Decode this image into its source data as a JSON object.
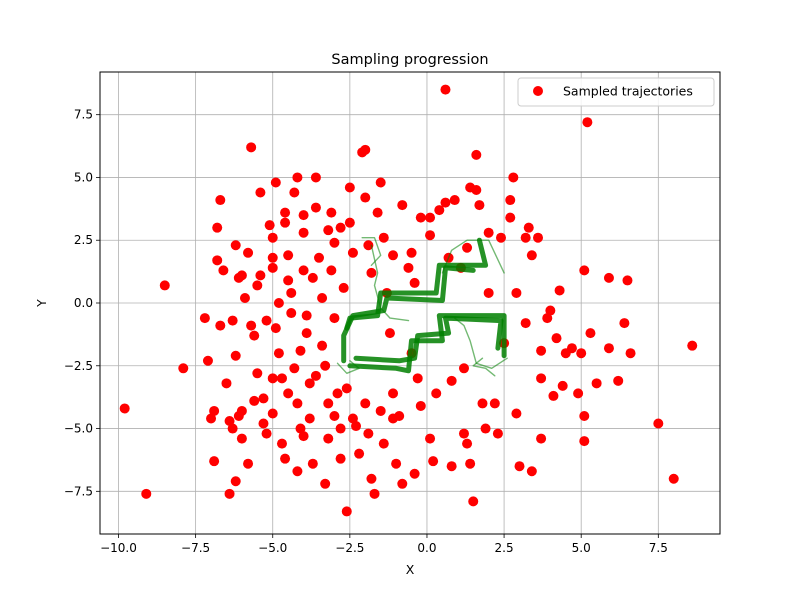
{
  "chart_data": {
    "type": "scatter",
    "title": "Sampling progression",
    "xlabel": "X",
    "ylabel": "Y",
    "xlim": [
      -10.6,
      9.5
    ],
    "ylim": [
      -9.2,
      9.2
    ],
    "xticks": [
      -10.0,
      -7.5,
      -5.0,
      -2.5,
      0.0,
      2.5,
      5.0,
      7.5
    ],
    "yticks": [
      -7.5,
      -5.0,
      -2.5,
      0.0,
      2.5,
      5.0,
      7.5
    ],
    "xtick_labels": [
      "−10.0",
      "−7.5",
      "−5.0",
      "−2.5",
      "0.0",
      "2.5",
      "5.0",
      "7.5"
    ],
    "ytick_labels": [
      "−7.5",
      "−5.0",
      "−2.5",
      "0.0",
      "2.5",
      "5.0",
      "7.5"
    ],
    "grid": true,
    "legend": {
      "position": "top-right",
      "entries": [
        "Sampled trajectories"
      ]
    },
    "colors": {
      "points": "#ff0000",
      "path": "#007f00",
      "grid": "#b0b0b0"
    },
    "series": [
      {
        "name": "Sampled trajectories",
        "kind": "scatter",
        "points": [
          [
            -9.8,
            -4.2
          ],
          [
            -9.1,
            -7.6
          ],
          [
            -8.5,
            0.7
          ],
          [
            -7.9,
            -2.6
          ],
          [
            -7.2,
            -0.6
          ],
          [
            -7.1,
            -2.3
          ],
          [
            -7.0,
            -4.6
          ],
          [
            -6.9,
            -4.3
          ],
          [
            -6.9,
            -6.3
          ],
          [
            -6.8,
            3.0
          ],
          [
            -6.7,
            4.1
          ],
          [
            -6.8,
            1.7
          ],
          [
            -6.6,
            1.3
          ],
          [
            -6.7,
            -0.9
          ],
          [
            -6.5,
            -3.2
          ],
          [
            -6.4,
            -4.7
          ],
          [
            -6.3,
            -5.0
          ],
          [
            -6.2,
            -7.1
          ],
          [
            -6.4,
            -7.6
          ],
          [
            -6.2,
            2.3
          ],
          [
            -6.1,
            1.0
          ],
          [
            -6.2,
            -2.1
          ],
          [
            -6.0,
            -4.3
          ],
          [
            -6.0,
            -5.4
          ],
          [
            -5.8,
            -6.4
          ],
          [
            -5.9,
            0.2
          ],
          [
            -5.6,
            -1.3
          ],
          [
            -5.5,
            -2.8
          ],
          [
            -5.7,
            6.2
          ],
          [
            -5.4,
            4.4
          ],
          [
            -5.4,
            1.1
          ],
          [
            -5.5,
            0.7
          ],
          [
            -5.3,
            -3.8
          ],
          [
            -5.2,
            -5.2
          ],
          [
            -5.0,
            -4.4
          ],
          [
            -5.0,
            2.6
          ],
          [
            -5.0,
            1.4
          ],
          [
            -4.8,
            0.0
          ],
          [
            -4.9,
            -1.0
          ],
          [
            -4.8,
            -2.0
          ],
          [
            -4.7,
            -3.0
          ],
          [
            -4.7,
            -5.6
          ],
          [
            -4.6,
            -6.2
          ],
          [
            -4.9,
            4.8
          ],
          [
            -4.6,
            3.2
          ],
          [
            -4.5,
            1.9
          ],
          [
            -4.4,
            -0.4
          ],
          [
            -4.3,
            -2.6
          ],
          [
            -4.2,
            -4.0
          ],
          [
            -4.1,
            -5.0
          ],
          [
            -4.2,
            -6.7
          ],
          [
            -4.2,
            5.0
          ],
          [
            -4.3,
            4.4
          ],
          [
            -4.0,
            2.8
          ],
          [
            -4.0,
            1.3
          ],
          [
            -3.9,
            -1.2
          ],
          [
            -3.8,
            -3.2
          ],
          [
            -3.8,
            -4.6
          ],
          [
            -3.7,
            -6.4
          ],
          [
            -3.6,
            5.0
          ],
          [
            -3.6,
            3.8
          ],
          [
            -3.5,
            1.8
          ],
          [
            -3.4,
            0.2
          ],
          [
            -3.4,
            -1.7
          ],
          [
            -3.3,
            -2.5
          ],
          [
            -3.2,
            -4.0
          ],
          [
            -3.2,
            -5.4
          ],
          [
            -3.3,
            -7.2
          ],
          [
            -3.1,
            3.6
          ],
          [
            -3.0,
            2.4
          ],
          [
            -3.0,
            -0.6
          ],
          [
            -2.9,
            -3.6
          ],
          [
            -2.8,
            -5.0
          ],
          [
            -2.8,
            -6.2
          ],
          [
            -2.6,
            -8.3
          ],
          [
            -2.5,
            4.6
          ],
          [
            -2.5,
            3.2
          ],
          [
            -2.4,
            2.0
          ],
          [
            -2.4,
            -4.6
          ],
          [
            -2.2,
            -6.0
          ],
          [
            -2.1,
            6.0
          ],
          [
            -2.0,
            6.1
          ],
          [
            -2.0,
            4.2
          ],
          [
            -2.0,
            -4.0
          ],
          [
            -1.9,
            -5.2
          ],
          [
            -1.8,
            -7.0
          ],
          [
            -1.7,
            -7.6
          ],
          [
            -1.5,
            4.8
          ],
          [
            -1.6,
            3.6
          ],
          [
            -1.4,
            2.6
          ],
          [
            -1.3,
            0.4
          ],
          [
            -1.2,
            -1.2
          ],
          [
            -1.1,
            -3.6
          ],
          [
            -1.1,
            -4.6
          ],
          [
            -1.0,
            -6.4
          ],
          [
            -0.8,
            3.9
          ],
          [
            -0.8,
            -7.2
          ],
          [
            -0.6,
            1.4
          ],
          [
            -0.5,
            -2.0
          ],
          [
            -0.4,
            -6.8
          ],
          [
            -0.2,
            3.4
          ],
          [
            -0.2,
            -4.1
          ],
          [
            0.1,
            3.4
          ],
          [
            0.1,
            -5.4
          ],
          [
            0.2,
            -6.3
          ],
          [
            0.4,
            3.7
          ],
          [
            0.6,
            8.5
          ],
          [
            0.6,
            4.0
          ],
          [
            0.8,
            -6.5
          ],
          [
            0.9,
            4.1
          ],
          [
            1.2,
            -5.2
          ],
          [
            1.3,
            -5.6
          ],
          [
            1.4,
            -6.4
          ],
          [
            1.5,
            -7.9
          ],
          [
            1.4,
            4.6
          ],
          [
            1.6,
            4.5
          ],
          [
            1.6,
            5.9
          ],
          [
            1.7,
            3.9
          ],
          [
            1.8,
            -4.0
          ],
          [
            1.9,
            -5.0
          ],
          [
            2.0,
            2.8
          ],
          [
            2.2,
            -4.0
          ],
          [
            2.3,
            -5.2
          ],
          [
            2.5,
            -1.6
          ],
          [
            2.7,
            4.1
          ],
          [
            2.8,
            5.0
          ],
          [
            2.7,
            3.4
          ],
          [
            2.9,
            -4.4
          ],
          [
            3.0,
            -6.5
          ],
          [
            3.2,
            2.6
          ],
          [
            3.3,
            3.0
          ],
          [
            3.4,
            -6.7
          ],
          [
            3.6,
            2.6
          ],
          [
            3.7,
            -3.0
          ],
          [
            3.7,
            -5.4
          ],
          [
            3.9,
            -0.6
          ],
          [
            4.1,
            -3.7
          ],
          [
            4.2,
            -1.4
          ],
          [
            4.4,
            -3.3
          ],
          [
            4.5,
            -2.0
          ],
          [
            4.7,
            -1.8
          ],
          [
            4.9,
            -3.6
          ],
          [
            5.0,
            -2.0
          ],
          [
            5.1,
            -4.5
          ],
          [
            5.1,
            -5.5
          ],
          [
            5.2,
            7.2
          ],
          [
            5.3,
            -1.2
          ],
          [
            5.5,
            -3.2
          ],
          [
            5.9,
            -1.8
          ],
          [
            6.2,
            -3.1
          ],
          [
            6.4,
            -0.8
          ],
          [
            6.5,
            0.9
          ],
          [
            6.6,
            -2.0
          ],
          [
            7.5,
            -4.8
          ],
          [
            8.0,
            -7.0
          ],
          [
            8.6,
            -1.7
          ],
          [
            5.1,
            1.3
          ],
          [
            5.9,
            1.0
          ],
          [
            4.3,
            0.5
          ],
          [
            3.2,
            -0.8
          ],
          [
            3.7,
            -1.9
          ],
          [
            4.0,
            -0.3
          ],
          [
            -3.9,
            -0.5
          ],
          [
            -4.4,
            0.4
          ],
          [
            -5.2,
            -0.7
          ],
          [
            -5.7,
            -0.9
          ],
          [
            -6.3,
            -0.7
          ],
          [
            -4.1,
            -1.9
          ],
          [
            -3.6,
            -2.9
          ],
          [
            -4.5,
            -3.6
          ],
          [
            -5.0,
            -3.0
          ],
          [
            -5.6,
            -3.9
          ],
          [
            -6.1,
            -4.5
          ],
          [
            -5.3,
            -4.8
          ],
          [
            -4.0,
            -5.3
          ],
          [
            -3.0,
            -4.5
          ],
          [
            -2.6,
            -3.4
          ],
          [
            -2.3,
            -4.9
          ],
          [
            -1.5,
            -4.3
          ],
          [
            -1.4,
            -5.6
          ],
          [
            -0.9,
            -4.5
          ],
          [
            -0.3,
            -3.0
          ],
          [
            0.3,
            -3.6
          ],
          [
            0.8,
            -3.1
          ],
          [
            1.2,
            -2.6
          ],
          [
            -4.6,
            3.6
          ],
          [
            -4.0,
            3.5
          ],
          [
            -3.2,
            2.9
          ],
          [
            -2.8,
            3.0
          ],
          [
            -5.1,
            3.1
          ],
          [
            -5.8,
            2.0
          ],
          [
            -6.0,
            1.1
          ],
          [
            -5.0,
            1.8
          ],
          [
            -4.5,
            0.9
          ],
          [
            -3.7,
            1.0
          ],
          [
            -3.1,
            1.3
          ],
          [
            -2.7,
            0.6
          ],
          [
            -1.8,
            1.2
          ],
          [
            -1.1,
            1.9
          ],
          [
            -0.4,
            0.8
          ],
          [
            0.7,
            1.8
          ],
          [
            1.1,
            1.4
          ],
          [
            2.0,
            0.4
          ],
          [
            2.9,
            0.4
          ],
          [
            3.4,
            1.9
          ],
          [
            2.4,
            2.6
          ],
          [
            1.3,
            2.2
          ],
          [
            0.1,
            2.7
          ],
          [
            -0.5,
            2.0
          ],
          [
            -1.9,
            2.3
          ]
        ]
      },
      {
        "name": "",
        "kind": "line",
        "paths": [
          [
            [
              -2.5,
              -2.5
            ],
            [
              -1.0,
              -2.6
            ],
            [
              -0.6,
              -2.7
            ],
            [
              -0.5,
              -1.5
            ],
            [
              0.5,
              -1.5
            ],
            [
              0.4,
              -0.5
            ],
            [
              2.5,
              -0.5
            ],
            [
              2.5,
              -2.1
            ]
          ],
          [
            [
              -2.6,
              -1.0
            ],
            [
              -2.5,
              -0.6
            ],
            [
              -1.6,
              -0.5
            ],
            [
              -1.5,
              0.4
            ],
            [
              0.3,
              0.4
            ],
            [
              0.4,
              1.5
            ],
            [
              1.9,
              1.5
            ],
            [
              1.7,
              2.5
            ]
          ],
          [
            [
              -2.3,
              -2.2
            ],
            [
              -0.9,
              -2.3
            ],
            [
              -0.4,
              -2.2
            ],
            [
              -0.3,
              -1.3
            ],
            [
              0.7,
              -1.2
            ],
            [
              0.6,
              -0.6
            ],
            [
              2.4,
              -0.7
            ],
            [
              2.3,
              -1.8
            ]
          ],
          [
            [
              -2.7,
              -2.3
            ],
            [
              -2.7,
              -1.3
            ],
            [
              -2.4,
              -0.5
            ],
            [
              -1.4,
              -0.3
            ],
            [
              -1.3,
              0.2
            ],
            [
              0.5,
              0.1
            ],
            [
              0.6,
              1.4
            ],
            [
              1.5,
              1.3
            ]
          ],
          [
            [
              -1.8,
              2.3
            ],
            [
              -1.6,
              1.2
            ],
            [
              -1.7,
              0.7
            ],
            [
              -1.5,
              -0.2
            ],
            [
              -1.2,
              -0.6
            ],
            [
              -0.6,
              -0.7
            ]
          ],
          [
            [
              0.5,
              1.2
            ],
            [
              0.8,
              2.1
            ],
            [
              1.3,
              2.5
            ],
            [
              2.0,
              2.5
            ],
            [
              2.5,
              1.2
            ]
          ],
          [
            [
              0.9,
              -0.6
            ],
            [
              1.2,
              -0.9
            ],
            [
              1.4,
              -1.5
            ],
            [
              1.6,
              -2.4
            ],
            [
              2.1,
              -2.6
            ],
            [
              2.6,
              -2.2
            ]
          ],
          [
            [
              -2.5,
              -2.3
            ],
            [
              -2.2,
              -2.6
            ],
            [
              -2.6,
              -2.8
            ],
            [
              -2.9,
              -2.4
            ]
          ],
          [
            [
              -2.1,
              2.6
            ],
            [
              -1.7,
              2.6
            ],
            [
              -1.5,
              1.9
            ],
            [
              -1.8,
              1.5
            ]
          ],
          [
            [
              1.8,
              -2.2
            ],
            [
              1.5,
              -2.5
            ],
            [
              1.9,
              -2.6
            ],
            [
              2.2,
              -2.9
            ]
          ]
        ]
      }
    ]
  }
}
